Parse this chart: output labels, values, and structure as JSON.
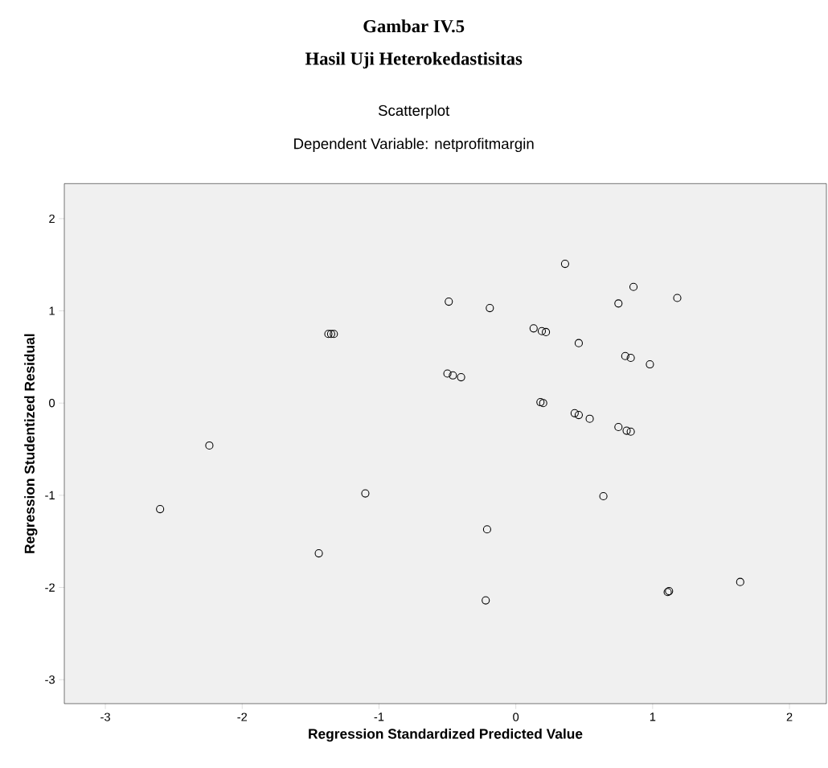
{
  "chart_data": {
    "type": "scatter",
    "title": "Scatterplot",
    "subtitle": "Dependent Variable: netprofitmargin",
    "annotations": [
      "Gambar IV.5",
      "Hasil Uji Heterokedastisitas"
    ],
    "xlabel": "Regression Standardized Predicted Value",
    "ylabel": "Regression Studentized Residual",
    "x": [
      -2.6,
      -2.24,
      -1.44,
      -1.1,
      -1.37,
      -1.35,
      -1.33,
      0.36,
      0.86,
      -0.49,
      -0.19,
      0.75,
      1.18,
      0.13,
      0.19,
      0.22,
      0.46,
      0.8,
      0.84,
      0.98,
      -0.5,
      -0.46,
      -0.4,
      0.18,
      0.2,
      0.43,
      0.46,
      0.54,
      0.75,
      0.81,
      0.84,
      0.64,
      -0.21,
      -0.22,
      1.12,
      1.11,
      1.64
    ],
    "values": [
      -1.15,
      -0.46,
      -1.63,
      -0.98,
      0.75,
      0.75,
      0.75,
      1.51,
      1.26,
      1.1,
      1.03,
      1.08,
      1.14,
      0.81,
      0.78,
      0.77,
      0.65,
      0.51,
      0.49,
      0.42,
      0.32,
      0.3,
      0.28,
      0.01,
      0.0,
      -0.11,
      -0.13,
      -0.17,
      -0.26,
      -0.3,
      -0.31,
      -1.01,
      -1.37,
      -2.14,
      -2.04,
      -2.05,
      -1.94
    ],
    "color": "#000000",
    "marker": "circle",
    "xlim": [
      -3.3,
      2.27
    ],
    "ylim": [
      -3.26,
      2.38
    ],
    "xticks": [
      -3,
      -2,
      -1,
      0,
      1,
      2
    ],
    "yticks": [
      -3,
      -2,
      -1,
      0,
      1,
      2
    ],
    "grid": false
  }
}
